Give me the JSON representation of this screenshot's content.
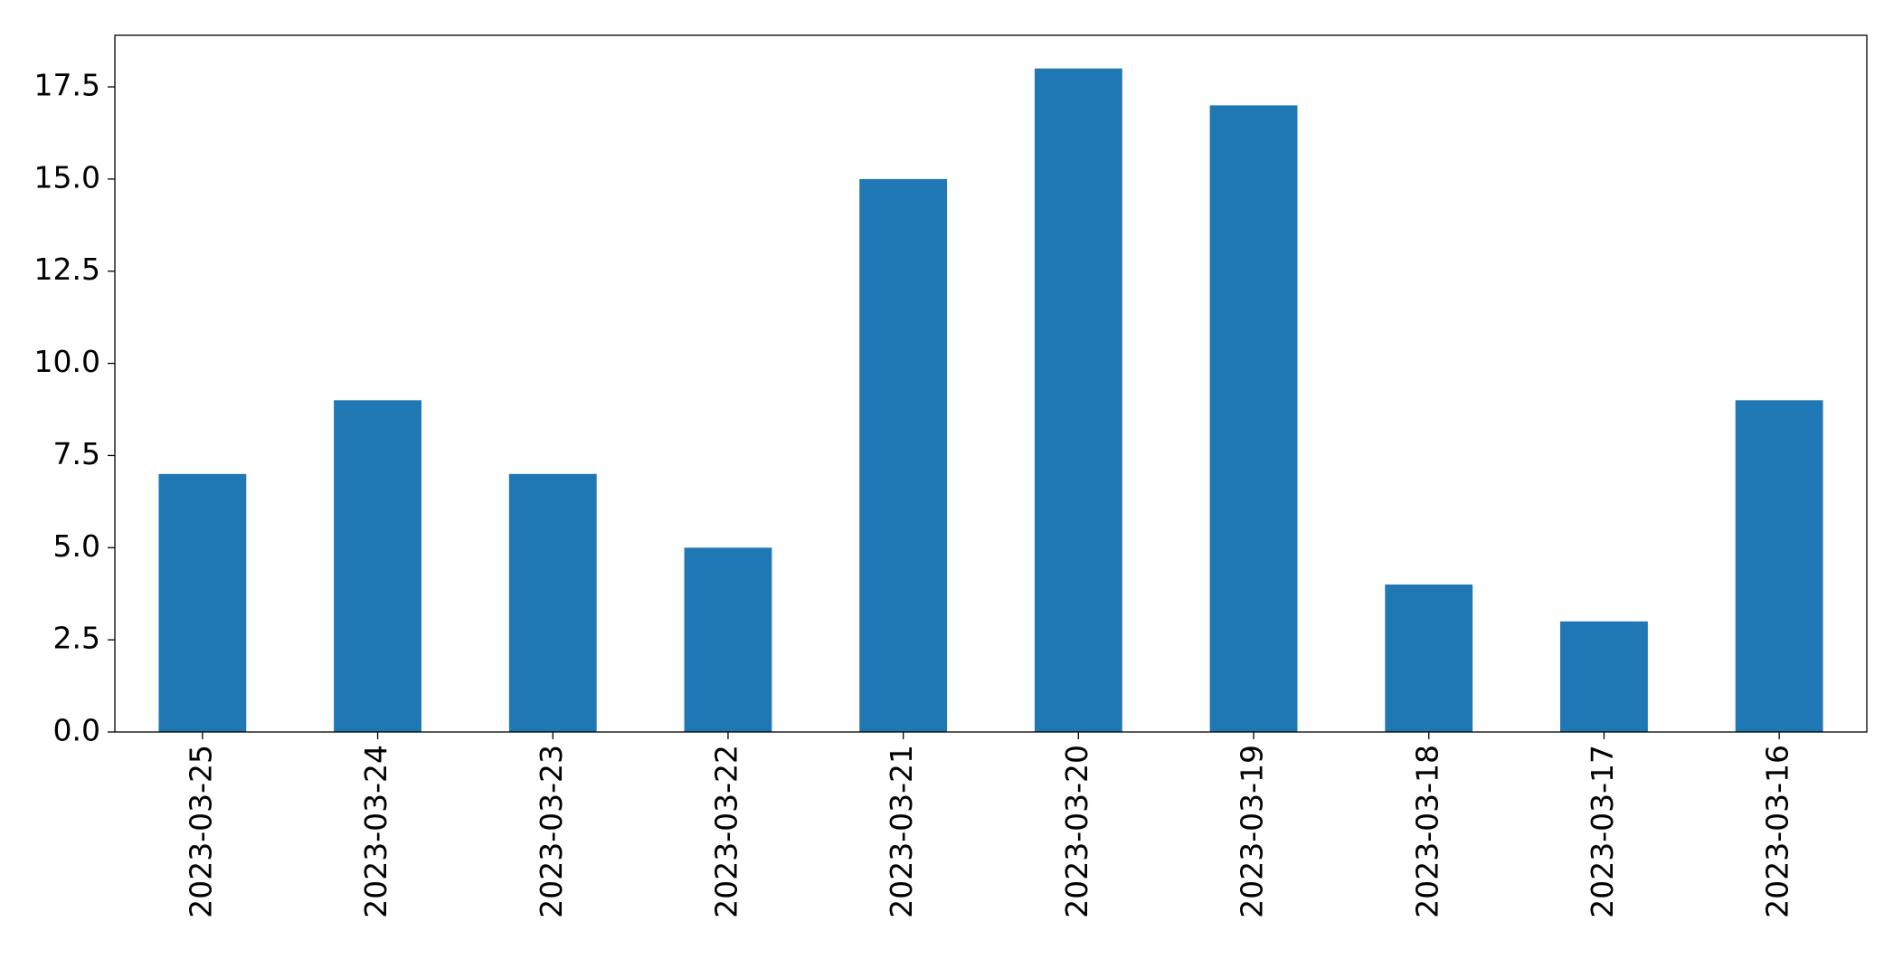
{
  "chart_data": {
    "type": "bar",
    "categories": [
      "2023-03-25",
      "2023-03-24",
      "2023-03-23",
      "2023-03-22",
      "2023-03-21",
      "2023-03-20",
      "2023-03-19",
      "2023-03-18",
      "2023-03-17",
      "2023-03-16"
    ],
    "values": [
      7,
      9,
      7,
      5,
      15,
      18,
      17,
      4,
      3,
      9
    ],
    "color": "#1f77b4",
    "ylim": [
      0,
      18.9
    ],
    "yticks": [
      {
        "value": 0,
        "label": "0.0"
      },
      2.5,
      {
        "value": 5,
        "label": "5.0"
      },
      7.5,
      {
        "value": 10,
        "label": "10.0"
      },
      12.5,
      {
        "value": 15,
        "label": "15.0"
      },
      17.5
    ],
    "grid": false
  }
}
